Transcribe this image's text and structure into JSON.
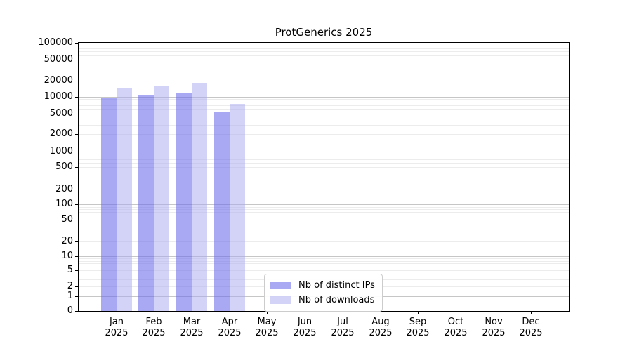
{
  "chart_data": {
    "type": "bar",
    "title": "ProtGenerics 2025",
    "categories": [
      "Jan",
      "Feb",
      "Mar",
      "Apr",
      "May",
      "Jun",
      "Jul",
      "Aug",
      "Sep",
      "Oct",
      "Nov",
      "Dec"
    ],
    "year_label": "2025",
    "series": [
      {
        "name": "Nb of distinct IPs",
        "color": "#6969EB94",
        "values": [
          9500,
          10600,
          11600,
          5500,
          null,
          null,
          null,
          null,
          null,
          null,
          null,
          null
        ]
      },
      {
        "name": "Nb of downloads",
        "color": "#A8A8F080",
        "values": [
          14300,
          15700,
          18200,
          7500,
          null,
          null,
          null,
          null,
          null,
          null,
          null,
          null
        ]
      }
    ],
    "y_axis": {
      "scale": "symlog",
      "range": [
        0,
        100000
      ],
      "ticks": [
        0,
        1,
        2,
        5,
        10,
        20,
        50,
        100,
        200,
        500,
        1000,
        2000,
        5000,
        10000,
        20000,
        50000,
        100000
      ]
    },
    "x_axis": {
      "label_format": "month-over-year"
    },
    "legend": {
      "position": "lower center"
    },
    "grid": "both",
    "colors": {
      "major_grid": "#c6c6c6",
      "minor_grid": "#ececec",
      "axis": "#000000",
      "background": "#ffffff"
    }
  }
}
